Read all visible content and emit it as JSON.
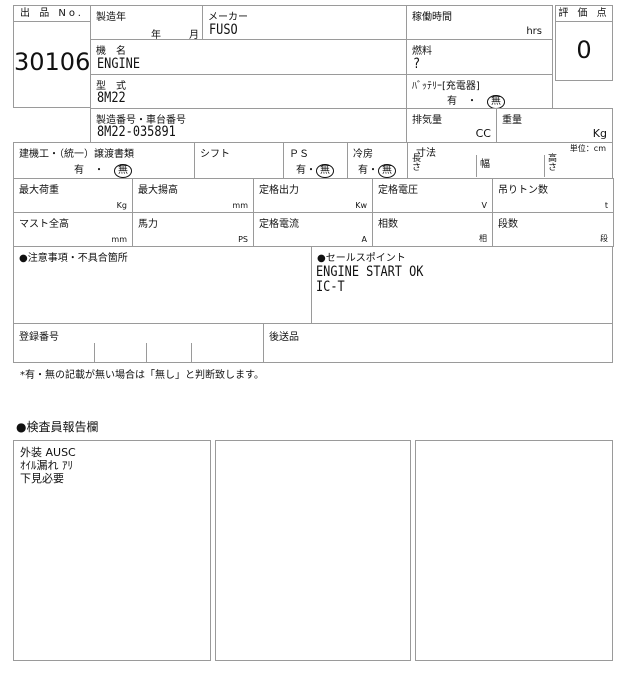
{
  "lot": {
    "label": "出 品 No.",
    "value": "30106"
  },
  "year": {
    "label": "製造年",
    "year_unit": "年",
    "month_unit": "月"
  },
  "maker": {
    "label": "メーカー",
    "value": "FUSO"
  },
  "hours": {
    "label": "稼働時間",
    "unit": "hrs"
  },
  "score": {
    "label": "評 価 点",
    "value": "0"
  },
  "model_name": {
    "label": "機　名",
    "value": "ENGINE"
  },
  "fuel": {
    "label": "燃料",
    "value": "?"
  },
  "type": {
    "label": "型　式",
    "value": "8M22"
  },
  "battery": {
    "label": "ﾊﾞｯﾃﾘｰ[充電器]",
    "yes": "有",
    "sep": "・",
    "no": "無",
    "selected": "無"
  },
  "serial": {
    "label": "製造番号・車台番号",
    "value": "8M22-035891"
  },
  "displacement": {
    "label": "排気量",
    "unit": "CC"
  },
  "weight": {
    "label": "重量",
    "unit": "Kg"
  },
  "docs": {
    "label": "建機工・（統一）譲渡書類",
    "yes": "有",
    "sep": "・",
    "no": "無",
    "selected": "無"
  },
  "shift": {
    "label": "シフト"
  },
  "ps": {
    "label": "ＰＳ",
    "yes": "有",
    "sep": "・",
    "no": "無",
    "selected": "無"
  },
  "aircon": {
    "label": "冷房",
    "yes": "有",
    "sep": "・",
    "no": "無",
    "selected": "無"
  },
  "dims": {
    "label": "寸法",
    "unit_note": "単位：cm",
    "length": "長さ",
    "width": "幅",
    "height": "高さ"
  },
  "row6": [
    {
      "label": "最大荷重",
      "unit": "Kg"
    },
    {
      "label": "最大揚高",
      "unit": "mm"
    },
    {
      "label": "定格出力",
      "unit": "Kw"
    },
    {
      "label": "定格電圧",
      "unit": "V"
    },
    {
      "label": "吊りトン数",
      "unit": "t"
    }
  ],
  "row7": [
    {
      "label": "マスト全高",
      "unit": "mm"
    },
    {
      "label": "馬力",
      "unit": "PS"
    },
    {
      "label": "定格電流",
      "unit": "A"
    },
    {
      "label": "相数",
      "unit": "相"
    },
    {
      "label": "段数",
      "unit": "段"
    }
  ],
  "caution": {
    "label": "●注意事項・不具合箇所"
  },
  "sales": {
    "label": "●セールスポイント",
    "text": "ENGINE START OK\nIC-T"
  },
  "registration": {
    "label": "登録番号"
  },
  "later": {
    "label": "後送品"
  },
  "footnote": "*有・無の記載が無い場合は「無し」と判断致します。",
  "inspector": {
    "title": "●検査員報告欄",
    "boxes": [
      "外装 AUSC\nｵｲﾙ漏れ ｱﾘ\n下見必要",
      "",
      ""
    ]
  }
}
